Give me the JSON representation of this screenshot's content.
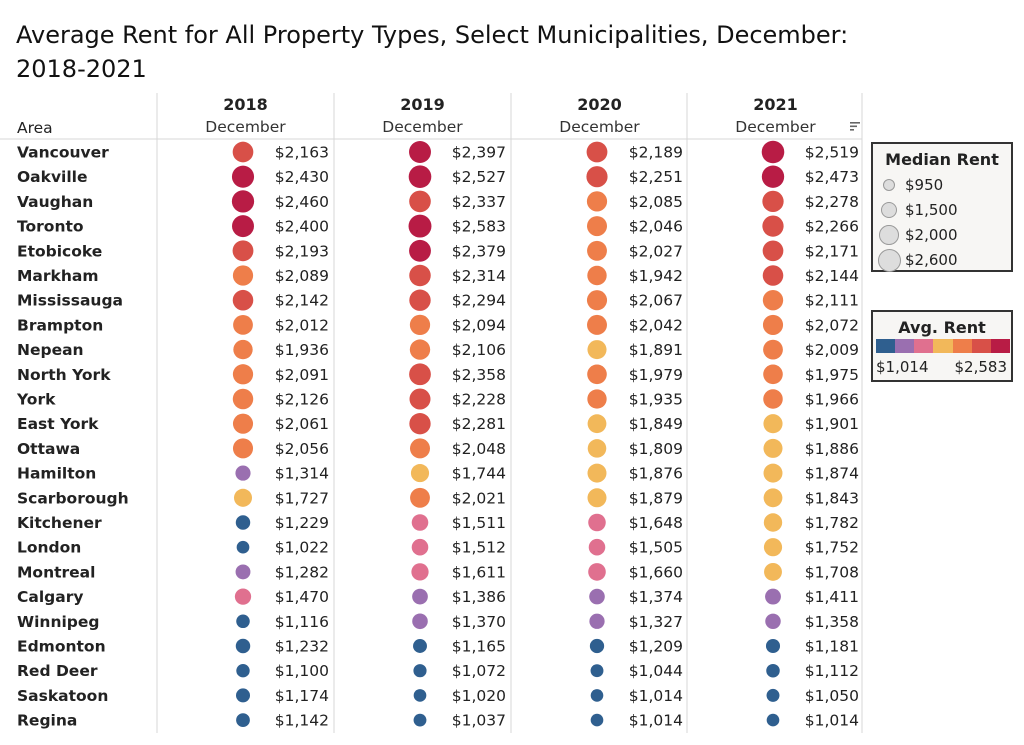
{
  "title": "Average Rent for All Property Types, Select Municipalities, December: 2018-2021",
  "chart_data": {
    "type": "table",
    "row_header": "Area",
    "sub_header": "December",
    "years": [
      "2018",
      "2019",
      "2020",
      "2021"
    ],
    "rows": [
      {
        "area": "Vancouver",
        "values": [
          2163,
          2397,
          2189,
          2519
        ],
        "labels": [
          "$2,163",
          "$2,397",
          "$2,189",
          "$2,519"
        ]
      },
      {
        "area": "Oakville",
        "values": [
          2430,
          2527,
          2251,
          2473
        ],
        "labels": [
          "$2,430",
          "$2,527",
          "$2,251",
          "$2,473"
        ]
      },
      {
        "area": "Vaughan",
        "values": [
          2460,
          2337,
          2085,
          2278
        ],
        "labels": [
          "$2,460",
          "$2,337",
          "$2,085",
          "$2,278"
        ]
      },
      {
        "area": "Toronto",
        "values": [
          2400,
          2583,
          2046,
          2266
        ],
        "labels": [
          "$2,400",
          "$2,583",
          "$2,046",
          "$2,266"
        ]
      },
      {
        "area": "Etobicoke",
        "values": [
          2193,
          2379,
          2027,
          2171
        ],
        "labels": [
          "$2,193",
          "$2,379",
          "$2,027",
          "$2,171"
        ]
      },
      {
        "area": "Markham",
        "values": [
          2089,
          2314,
          1942,
          2144
        ],
        "labels": [
          "$2,089",
          "$2,314",
          "$1,942",
          "$2,144"
        ]
      },
      {
        "area": "Mississauga",
        "values": [
          2142,
          2294,
          2067,
          2111
        ],
        "labels": [
          "$2,142",
          "$2,294",
          "$2,067",
          "$2,111"
        ]
      },
      {
        "area": "Brampton",
        "values": [
          2012,
          2094,
          2042,
          2072
        ],
        "labels": [
          "$2,012",
          "$2,094",
          "$2,042",
          "$2,072"
        ]
      },
      {
        "area": "Nepean",
        "values": [
          1936,
          2106,
          1891,
          2009
        ],
        "labels": [
          "$1,936",
          "$2,106",
          "$1,891",
          "$2,009"
        ]
      },
      {
        "area": "North York",
        "values": [
          2091,
          2358,
          1979,
          1975
        ],
        "labels": [
          "$2,091",
          "$2,358",
          "$1,979",
          "$1,975"
        ]
      },
      {
        "area": "York",
        "values": [
          2126,
          2228,
          1935,
          1966
        ],
        "labels": [
          "$2,126",
          "$2,228",
          "$1,935",
          "$1,966"
        ]
      },
      {
        "area": "East York",
        "values": [
          2061,
          2281,
          1849,
          1901
        ],
        "labels": [
          "$2,061",
          "$2,281",
          "$1,849",
          "$1,901"
        ]
      },
      {
        "area": "Ottawa",
        "values": [
          2056,
          2048,
          1809,
          1886
        ],
        "labels": [
          "$2,056",
          "$2,048",
          "$1,809",
          "$1,886"
        ]
      },
      {
        "area": "Hamilton",
        "values": [
          1314,
          1744,
          1876,
          1874
        ],
        "labels": [
          "$1,314",
          "$1,744",
          "$1,876",
          "$1,874"
        ]
      },
      {
        "area": "Scarborough",
        "values": [
          1727,
          2021,
          1879,
          1843
        ],
        "labels": [
          "$1,727",
          "$2,021",
          "$1,879",
          "$1,843"
        ]
      },
      {
        "area": "Kitchener",
        "values": [
          1229,
          1511,
          1648,
          1782
        ],
        "labels": [
          "$1,229",
          "$1,511",
          "$1,648",
          "$1,782"
        ]
      },
      {
        "area": "London",
        "values": [
          1022,
          1512,
          1505,
          1752
        ],
        "labels": [
          "$1,022",
          "$1,512",
          "$1,505",
          "$1,752"
        ]
      },
      {
        "area": "Montreal",
        "values": [
          1282,
          1611,
          1660,
          1708
        ],
        "labels": [
          "$1,282",
          "$1,611",
          "$1,660",
          "$1,708"
        ]
      },
      {
        "area": "Calgary",
        "values": [
          1470,
          1386,
          1374,
          1411
        ],
        "labels": [
          "$1,470",
          "$1,386",
          "$1,374",
          "$1,411"
        ]
      },
      {
        "area": "Winnipeg",
        "values": [
          1116,
          1370,
          1327,
          1358
        ],
        "labels": [
          "$1,116",
          "$1,370",
          "$1,327",
          "$1,358"
        ]
      },
      {
        "area": "Edmonton",
        "values": [
          1232,
          1165,
          1209,
          1181
        ],
        "labels": [
          "$1,232",
          "$1,165",
          "$1,209",
          "$1,181"
        ]
      },
      {
        "area": "Red Deer",
        "values": [
          1100,
          1072,
          1044,
          1112
        ],
        "labels": [
          "$1,100",
          "$1,072",
          "$1,044",
          "$1,112"
        ]
      },
      {
        "area": "Saskatoon",
        "values": [
          1174,
          1020,
          1014,
          1050
        ],
        "labels": [
          "$1,174",
          "$1,020",
          "$1,014",
          "$1,050"
        ]
      },
      {
        "area": "Regina",
        "values": [
          1142,
          1037,
          1014,
          1014
        ],
        "labels": [
          "$1,142",
          "$1,037",
          "$1,014",
          "$1,014"
        ]
      }
    ],
    "size_legend": {
      "title": "Median Rent",
      "items": [
        {
          "value": 950,
          "label": "$950"
        },
        {
          "value": 1500,
          "label": "$1,500"
        },
        {
          "value": 2000,
          "label": "$2,000"
        },
        {
          "value": 2600,
          "label": "$2,600"
        }
      ]
    },
    "color_legend": {
      "title": "Avg. Rent",
      "min": 1014,
      "max": 2583,
      "min_label": "$1,014",
      "max_label": "$2,583",
      "palette": [
        "#2f5f8f",
        "#9a6fb0",
        "#e0708f",
        "#f2b85a",
        "#ee7e4a",
        "#d85048",
        "#b81c45"
      ]
    }
  }
}
